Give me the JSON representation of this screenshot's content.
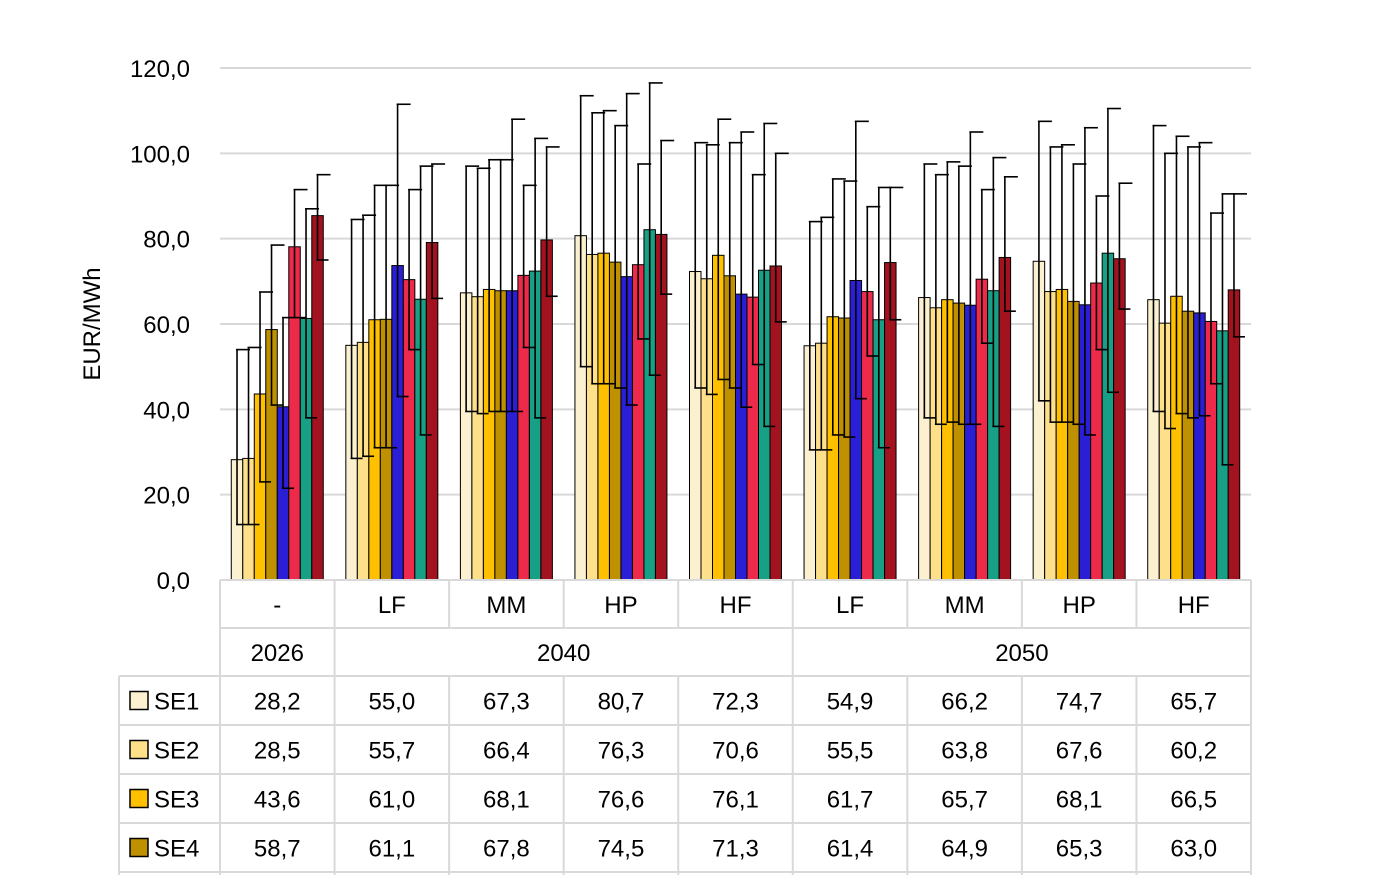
{
  "chart_data": {
    "type": "bar",
    "ylabel": "EUR/MWh",
    "ylim": [
      0,
      120
    ],
    "y_ticks": [
      "0,0",
      "20,0",
      "40,0",
      "60,0",
      "80,0",
      "100,0",
      "120,0"
    ],
    "grid": true,
    "error_bars": true,
    "years": [
      {
        "label": "2026",
        "span": 1
      },
      {
        "label": "2040",
        "span": 4
      },
      {
        "label": "2050",
        "span": 4
      }
    ],
    "categories": [
      "-",
      "LF",
      "MM",
      "HP",
      "HF",
      "LF",
      "MM",
      "HP",
      "HF"
    ],
    "legend_placement": "data-table-left",
    "series": [
      {
        "name": "SE1",
        "color": "#fbf0cf",
        "values": [
          28.2,
          55.0,
          67.3,
          80.7,
          72.3,
          54.9,
          66.2,
          74.7,
          65.7
        ],
        "display": [
          "28,2",
          "55,0",
          "67,3",
          "80,7",
          "72,3",
          "54,9",
          "66,2",
          "74,7",
          "65,7"
        ],
        "low": [
          13,
          28.5,
          39.5,
          50,
          45,
          30.5,
          38,
          42,
          39.5
        ],
        "high": [
          54,
          84.5,
          97,
          113.5,
          102.5,
          84,
          97.5,
          107.5,
          106.5
        ]
      },
      {
        "name": "SE2",
        "color": "#ffe08a",
        "values": [
          28.5,
          55.7,
          66.4,
          76.3,
          70.6,
          55.5,
          63.8,
          67.6,
          60.2
        ],
        "display": [
          "28,5",
          "55,7",
          "66,4",
          "76,3",
          "70,6",
          "55,5",
          "63,8",
          "67,6",
          "60,2"
        ],
        "low": [
          13,
          29,
          39,
          46,
          43.5,
          30.5,
          36.5,
          37,
          35.5
        ],
        "high": [
          54.5,
          85.5,
          96.5,
          109.5,
          102,
          85,
          95,
          101.5,
          100
        ]
      },
      {
        "name": "SE3",
        "color": "#ffc000",
        "values": [
          43.6,
          61.0,
          68.1,
          76.6,
          76.1,
          61.7,
          65.7,
          68.1,
          66.5
        ],
        "display": [
          "43,6",
          "61,0",
          "68,1",
          "76,6",
          "76,1",
          "61,7",
          "65,7",
          "68,1",
          "66,5"
        ],
        "low": [
          23,
          31,
          39.5,
          46,
          47,
          34,
          37,
          37,
          39
        ],
        "high": [
          67.5,
          92.5,
          98.5,
          110,
          108,
          94,
          98,
          102,
          104
        ]
      },
      {
        "name": "SE4",
        "color": "#bf9000",
        "values": [
          58.7,
          61.1,
          67.8,
          74.5,
          71.3,
          61.4,
          64.9,
          65.3,
          63.0
        ],
        "display": [
          "58,7",
          "61,1",
          "67,8",
          "74,5",
          "71,3",
          "61,4",
          "64,9",
          "65,3",
          "63,0"
        ],
        "low": [
          41,
          31,
          39.5,
          45,
          45,
          33.5,
          36.5,
          36.5,
          38
        ],
        "high": [
          78.5,
          92.5,
          98.5,
          106.5,
          102.5,
          93.5,
          97,
          97.5,
          101.5
        ]
      },
      {
        "name": "",
        "color": "#2b1fd6",
        "values": [
          40.6,
          73.7,
          67.8,
          71.1,
          67.0,
          70.2,
          64.4,
          64.5,
          62.6
        ],
        "low": [
          21.5,
          43,
          39.5,
          41,
          40.5,
          42.5,
          36.5,
          34,
          38.5
        ],
        "high": [
          61.5,
          111.5,
          108,
          114,
          105,
          107.5,
          105,
          106,
          102.5
        ]
      },
      {
        "name": "",
        "color": "#ee2a4a",
        "values": [
          78.1,
          70.4,
          71.4,
          73.9,
          66.3,
          67.6,
          70.5,
          69.6,
          60.6
        ],
        "display_hidden": true,
        "low": [
          61.5,
          54,
          54.5,
          56.5,
          50.5,
          52.5,
          55.5,
          54,
          46
        ],
        "high": [
          91.5,
          91.5,
          92.5,
          97.5,
          95,
          87.5,
          91.5,
          90,
          86
        ]
      },
      {
        "name": "",
        "color": "#17a085",
        "values": [
          61.3,
          65.8,
          72.4,
          82.1,
          72.6,
          61.0,
          67.8,
          76.6,
          58.4
        ],
        "low": [
          38,
          34,
          38,
          48,
          36,
          31,
          36,
          44,
          27
        ],
        "high": [
          87,
          97,
          103.5,
          116.5,
          107,
          92,
          99,
          110.5,
          90.5
        ]
      },
      {
        "name": "",
        "color": "#a3121f",
        "values": [
          85.4,
          79.1,
          79.7,
          81.0,
          73.6,
          74.4,
          75.6,
          75.3,
          68.0
        ],
        "low": [
          75,
          66,
          66.5,
          67,
          60.5,
          61,
          63,
          63.5,
          57
        ],
        "high": [
          95,
          97.5,
          101.5,
          103,
          100,
          92,
          94.5,
          93,
          90.5
        ]
      }
    ]
  }
}
